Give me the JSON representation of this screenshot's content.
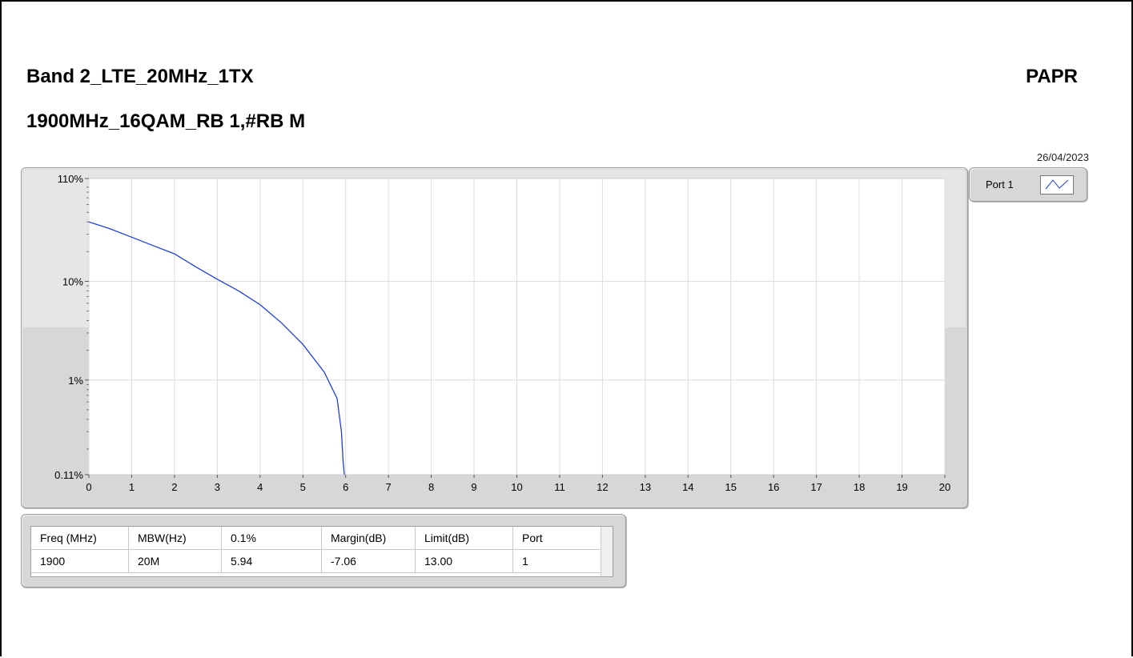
{
  "header": {
    "title_line1": "Band 2_LTE_20MHz_1TX",
    "title_line2": "1900MHz_16QAM_RB 1,#RB M",
    "title_right": "PAPR",
    "date": "26/04/2023"
  },
  "legend": {
    "label": "Port 1"
  },
  "chart_data": {
    "type": "line",
    "x_ticks": [
      0,
      1,
      2,
      3,
      4,
      5,
      6,
      7,
      8,
      9,
      10,
      11,
      12,
      13,
      14,
      15,
      16,
      17,
      18,
      19,
      20
    ],
    "y_ticks": [
      "110%",
      "10%",
      "1%",
      "0.11%"
    ],
    "y_tick_values": [
      110,
      10,
      1,
      0.11
    ],
    "xlim": [
      0,
      20
    ],
    "ylim": [
      0.11,
      110
    ],
    "y_scale": "log",
    "grid": true,
    "series": [
      {
        "name": "Port 1",
        "color": "#1f3fd8",
        "x": [
          0,
          0.5,
          1,
          1.5,
          2,
          2.5,
          3,
          3.5,
          4,
          4.5,
          5,
          5.5,
          5.8,
          5.9,
          5.94,
          5.97
        ],
        "y": [
          40,
          34,
          28,
          23,
          19,
          14,
          10.5,
          8,
          5.8,
          3.8,
          2.3,
          1.2,
          0.65,
          0.3,
          0.15,
          0.11
        ]
      }
    ]
  },
  "table": {
    "headers": [
      "Freq (MHz)",
      "MBW(Hz)",
      "0.1%",
      "Margin(dB)",
      "Limit(dB)",
      "Port"
    ],
    "rows": [
      [
        "1900",
        "20M",
        "5.94",
        "-7.06",
        "13.00",
        "1"
      ]
    ]
  }
}
